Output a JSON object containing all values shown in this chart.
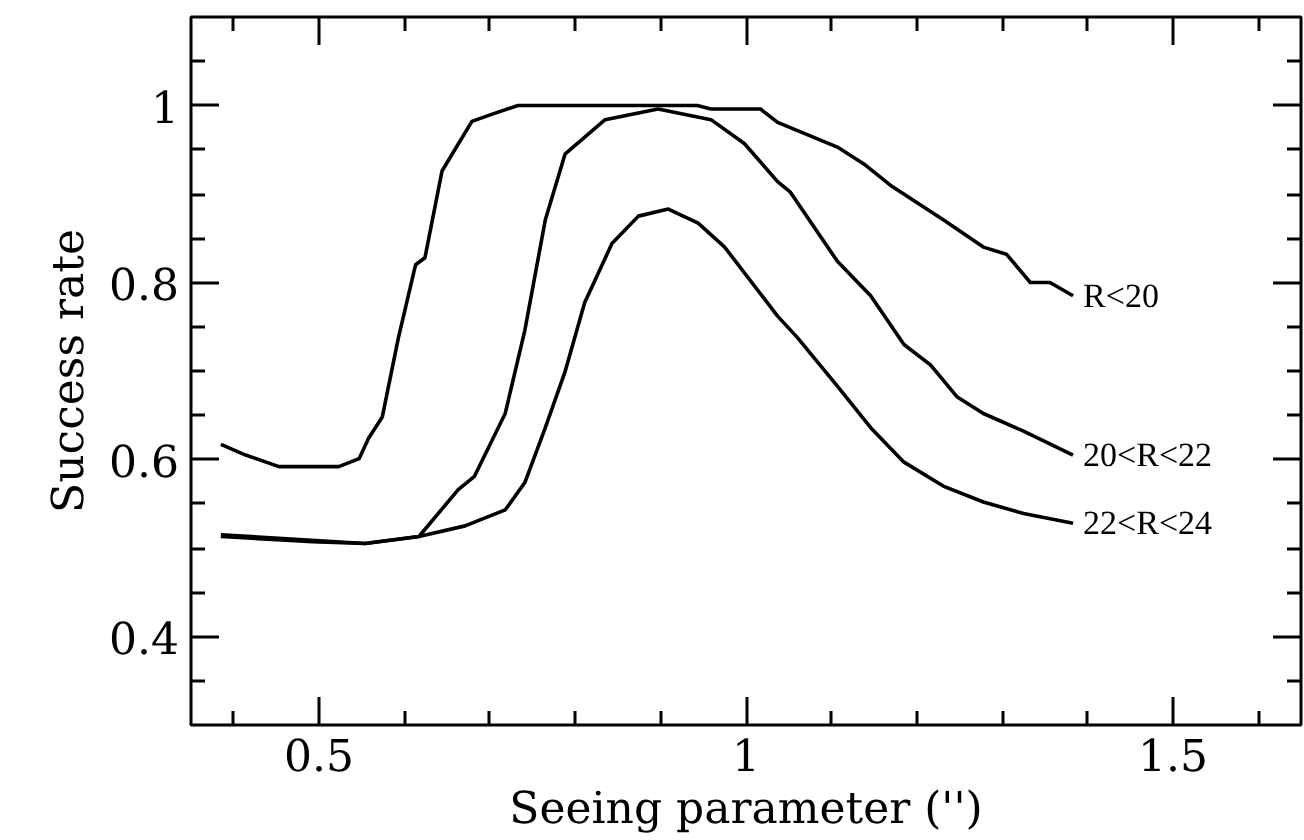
{
  "chart_data": {
    "type": "line",
    "xlabel": "Seeing parameter ('')",
    "ylabel": "Success rate",
    "xlim": [
      0.35,
      1.65
    ],
    "ylim": [
      0.3,
      1.1
    ],
    "xticks": [
      {
        "value": 0.4,
        "label": null
      },
      0.5,
      {
        "value": 0.6,
        "label": null
      },
      {
        "value": 0.7,
        "label": null
      },
      {
        "value": 0.8,
        "label": null
      },
      {
        "value": 0.9,
        "label": null
      },
      1,
      {
        "value": 1.1,
        "label": null
      },
      {
        "value": 1.2,
        "label": null
      },
      {
        "value": 1.3,
        "label": null
      },
      {
        "value": 1.4,
        "label": null
      },
      1.5,
      {
        "value": 1.6,
        "label": null
      }
    ],
    "yticks": [
      {
        "value": 0.35,
        "label": null
      },
      0.4,
      {
        "value": 0.45,
        "label": null
      },
      {
        "value": 0.5,
        "label": null
      },
      {
        "value": 0.55,
        "label": null
      },
      0.6,
      {
        "value": 0.65,
        "label": null
      },
      {
        "value": 0.7,
        "label": null
      },
      {
        "value": 0.75,
        "label": null
      },
      0.8,
      {
        "value": 0.85,
        "label": null
      },
      {
        "value": 0.9,
        "label": null
      },
      {
        "value": 0.95,
        "label": null
      },
      1,
      {
        "value": 1.05,
        "label": null
      }
    ],
    "grid": false,
    "legend": "right",
    "marker": "none",
    "line_style": "solid",
    "series": [
      {
        "name": "R<20",
        "color": "#000000",
        "x": [
          0.385,
          0.414,
          0.453,
          0.523,
          0.547,
          0.558,
          0.574,
          0.593,
          0.613,
          0.624,
          0.644,
          0.679,
          0.702,
          0.733,
          0.943,
          0.959,
          0.998,
          1.017,
          1.037,
          1.107,
          1.138,
          1.169,
          1.231,
          1.278,
          1.305,
          1.333,
          1.356,
          1.383
        ],
        "values": [
          0.617,
          0.605,
          0.592,
          0.592,
          0.601,
          0.624,
          0.648,
          0.738,
          0.82,
          0.828,
          0.926,
          0.982,
          0.99,
          1.0,
          1.0,
          0.996,
          0.996,
          0.996,
          0.981,
          0.953,
          0.934,
          0.91,
          0.871,
          0.84,
          0.832,
          0.8,
          0.8,
          0.785
        ]
      },
      {
        "name": "20<R<22",
        "color": "#000000",
        "x": [
          0.385,
          0.554,
          0.617,
          0.663,
          0.682,
          0.718,
          0.741,
          0.765,
          0.788,
          0.835,
          0.897,
          0.959,
          0.998,
          1.037,
          1.052,
          1.107,
          1.146,
          1.185,
          1.216,
          1.247,
          1.278,
          1.325,
          1.383
        ],
        "values": [
          0.515,
          0.505,
          0.513,
          0.566,
          0.581,
          0.652,
          0.746,
          0.871,
          0.945,
          0.984,
          0.996,
          0.984,
          0.957,
          0.914,
          0.902,
          0.824,
          0.785,
          0.73,
          0.707,
          0.671,
          0.652,
          0.632,
          0.605
        ]
      },
      {
        "name": "22<R<24",
        "color": "#000000",
        "x": [
          0.385,
          0.492,
          0.554,
          0.617,
          0.671,
          0.718,
          0.741,
          0.765,
          0.788,
          0.811,
          0.843,
          0.874,
          0.909,
          0.944,
          0.975,
          1.037,
          1.06,
          1.107,
          1.146,
          1.185,
          1.231,
          1.278,
          1.325,
          1.383
        ],
        "values": [
          0.513,
          0.507,
          0.505,
          0.513,
          0.525,
          0.543,
          0.574,
          0.636,
          0.699,
          0.777,
          0.844,
          0.875,
          0.883,
          0.867,
          0.84,
          0.762,
          0.738,
          0.683,
          0.636,
          0.597,
          0.57,
          0.552,
          0.539,
          0.528
        ]
      }
    ]
  }
}
